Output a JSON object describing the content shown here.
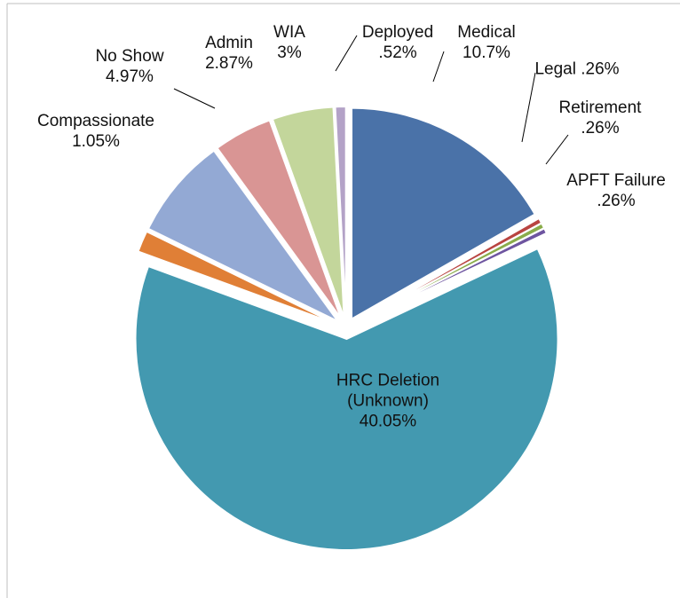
{
  "chart_data": {
    "type": "pie",
    "categories": [
      "Medical",
      "Legal",
      "Retirement",
      "APFT Failure",
      "HRC Deletion (Unknown)",
      "Compassionate",
      "No Show",
      "Admin",
      "WIA",
      "Deployed"
    ],
    "values": [
      10.7,
      0.26,
      0.26,
      0.26,
      40.05,
      1.05,
      4.97,
      2.87,
      3,
      0.52
    ],
    "value_labels": [
      "10.7%",
      ".26%",
      ".26%",
      ".26%",
      "40.05%",
      "1.05%",
      "4.97%",
      "2.87%",
      "3%",
      ".52%"
    ],
    "colors": [
      "#4a72a8",
      "#b94441",
      "#8aac4a",
      "#6e55a0",
      "#4399b0",
      "#e07f36",
      "#93a9d4",
      "#d99594",
      "#c3d69b",
      "#b3a2c7"
    ]
  }
}
